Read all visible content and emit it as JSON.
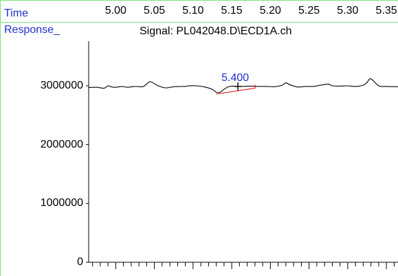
{
  "header": {
    "time_label": "Time",
    "response_label": "Response_",
    "signal_title": "Signal: PL042048.D\\ECD1A.ch"
  },
  "colors": {
    "trace": "#000000",
    "integration": "#e01010",
    "peak_label": "#1f2fcf",
    "frame": "#7fe07f"
  },
  "chart_data": {
    "type": "line",
    "title": "Signal: PL042048.D\\ECD1A.ch",
    "xlabel": "Time",
    "ylabel": "Response_",
    "xlim": [
      4.965,
      5.365
    ],
    "ylim": [
      0,
      3000000
    ],
    "x_ticks": [
      5.0,
      5.05,
      5.1,
      5.15,
      5.2,
      5.25,
      5.3,
      5.35
    ],
    "x_tick_labels": [
      "5.00",
      "5.05",
      "5.10",
      "5.15",
      "5.20",
      "5.25",
      "5.30",
      "5.35"
    ],
    "y_ticks": [
      0,
      1000000,
      2000000,
      3000000
    ],
    "y_tick_labels": [
      "0",
      "1000000",
      "2000000",
      "3000000"
    ],
    "grid": false,
    "series": [
      {
        "x": [
          4.965,
          4.975,
          4.985,
          4.99,
          4.995,
          5.0,
          5.008,
          5.015,
          5.025,
          5.035,
          5.04,
          5.045,
          5.055,
          5.065,
          5.075,
          5.085,
          5.09,
          5.095,
          5.105,
          5.115,
          5.125,
          5.13,
          5.135,
          5.14,
          5.145,
          5.15,
          5.16,
          5.175,
          5.185,
          5.195,
          5.205,
          5.215,
          5.22,
          5.225,
          5.235,
          5.245,
          5.255,
          5.265,
          5.275,
          5.28,
          5.29,
          5.3,
          5.31,
          5.32,
          5.325,
          5.33,
          5.34,
          5.35,
          5.365
        ],
        "y": [
          2970000,
          2975000,
          2960000,
          3000000,
          2980000,
          2975000,
          2990000,
          2975000,
          2990000,
          2985000,
          3030000,
          3070000,
          3000000,
          2965000,
          2985000,
          2990000,
          2990000,
          3000000,
          3000000,
          2980000,
          2940000,
          2890000,
          2890000,
          2940000,
          2980000,
          2995000,
          2990000,
          2995000,
          2990000,
          2990000,
          2985000,
          3010000,
          3050000,
          3020000,
          2980000,
          2990000,
          2990000,
          3010000,
          3030000,
          3000000,
          2995000,
          3000000,
          2990000,
          3010000,
          3060000,
          3120000,
          3000000,
          2990000,
          2985000
        ]
      }
    ],
    "integration_baseline": {
      "x": [
        5.13,
        5.18
      ],
      "y": [
        2860000,
        2960000
      ]
    },
    "peak": {
      "x": 5.158,
      "y": 2990000,
      "label": "5.400"
    }
  }
}
